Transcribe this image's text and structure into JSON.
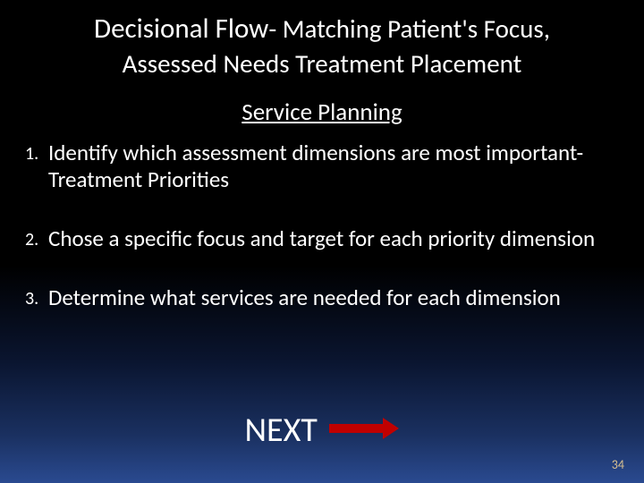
{
  "slide": {
    "title_part1": "Decisional Flow",
    "title_part2": "- Matching Patient's Focus,",
    "title_line2": "Assessed Needs Treatment Placement",
    "subtitle": "Service Planning",
    "items": [
      {
        "num": "1.",
        "text": "Identify which assessment dimensions are most important- Treatment Priorities"
      },
      {
        "num": "2.",
        "text": "Chose a specific focus and target for each priority dimension"
      },
      {
        "num": "3.",
        "text": "Determine what services are needed for each dimension"
      }
    ],
    "next_label": "NEXT",
    "page_number": "34",
    "colors": {
      "text": "#ffffff",
      "arrow": "#c00000",
      "page_num": "#d8c090",
      "bg_top": "#000000",
      "bg_bottom": "#2a4a90"
    }
  }
}
